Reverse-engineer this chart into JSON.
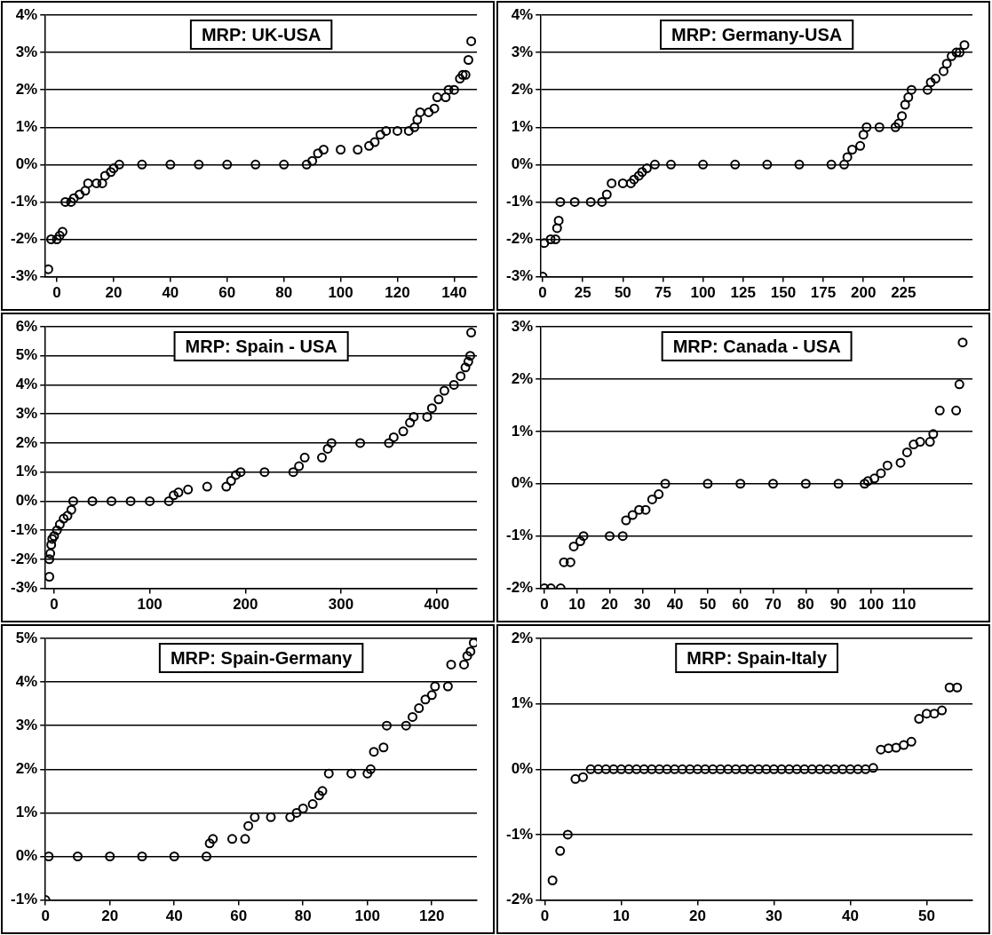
{
  "chart_data": [
    {
      "type": "scatter",
      "title": "MRP: UK-USA",
      "marker": "circle",
      "color": "#000000",
      "grid": "y",
      "x": [
        -3,
        -2,
        0,
        1,
        2,
        3,
        5,
        6,
        8,
        10,
        11,
        14,
        16,
        17,
        19,
        20,
        22,
        30,
        40,
        50,
        60,
        70,
        80,
        88,
        90,
        92,
        94,
        100,
        106,
        110,
        112,
        114,
        116,
        120,
        124,
        126,
        127,
        128,
        131,
        133,
        134,
        137,
        138,
        140,
        142,
        143,
        144,
        145,
        146
      ],
      "values": [
        -2.8,
        -2.0,
        -2.0,
        -1.9,
        -1.8,
        -1.0,
        -1.0,
        -0.9,
        -0.8,
        -0.7,
        -0.5,
        -0.5,
        -0.5,
        -0.3,
        -0.2,
        -0.1,
        0,
        0,
        0,
        0,
        0,
        0,
        0,
        0,
        0.1,
        0.3,
        0.4,
        0.4,
        0.4,
        0.5,
        0.6,
        0.8,
        0.9,
        0.9,
        0.9,
        1.0,
        1.2,
        1.4,
        1.4,
        1.5,
        1.8,
        1.8,
        2.0,
        2.0,
        2.3,
        2.4,
        2.4,
        2.8,
        3.3
      ],
      "xlim": [
        -4,
        148
      ],
      "xticks": [
        0,
        20,
        40,
        60,
        80,
        100,
        120,
        140
      ],
      "ylim": [
        -3,
        4
      ],
      "yticks": [
        {
          "value": -3,
          "label": "-3%"
        },
        {
          "value": -2,
          "label": "-2%"
        },
        {
          "value": -1,
          "label": "-1%"
        },
        {
          "value": 0,
          "label": "0%"
        },
        {
          "value": 1,
          "label": "1%"
        },
        {
          "value": 2,
          "label": "2%"
        },
        {
          "value": 3,
          "label": "3%"
        },
        {
          "value": 4,
          "label": "4%"
        }
      ]
    },
    {
      "type": "scatter",
      "title": "MRP: Germany-USA",
      "marker": "circle",
      "color": "#000000",
      "grid": "y",
      "x": [
        0,
        1,
        5,
        8,
        9,
        10,
        11,
        20,
        30,
        37,
        40,
        43,
        50,
        55,
        57,
        60,
        62,
        65,
        70,
        80,
        100,
        120,
        140,
        160,
        180,
        188,
        190,
        193,
        198,
        200,
        202,
        210,
        220,
        222,
        224,
        226,
        228,
        230,
        240,
        242,
        245,
        250,
        252,
        255,
        258,
        260,
        263
      ],
      "values": [
        -3.0,
        -2.1,
        -2.0,
        -2.0,
        -1.7,
        -1.5,
        -1.0,
        -1.0,
        -1.0,
        -1.0,
        -0.8,
        -0.5,
        -0.5,
        -0.5,
        -0.4,
        -0.3,
        -0.2,
        -0.1,
        0,
        0,
        0,
        0,
        0,
        0,
        0,
        0,
        0.2,
        0.4,
        0.5,
        0.8,
        1.0,
        1.0,
        1.0,
        1.1,
        1.3,
        1.6,
        1.8,
        2.0,
        2.0,
        2.2,
        2.3,
        2.5,
        2.7,
        2.9,
        3.0,
        3.0,
        3.2
      ],
      "xlim": [
        -1,
        268
      ],
      "xticks": [
        0,
        25,
        50,
        75,
        100,
        125,
        150,
        175,
        200,
        225
      ],
      "ylim": [
        -3,
        4
      ],
      "yticks": [
        {
          "value": -3,
          "label": "-3%"
        },
        {
          "value": -2,
          "label": "-2%"
        },
        {
          "value": -1,
          "label": "-1%"
        },
        {
          "value": 0,
          "label": "0%"
        },
        {
          "value": 1,
          "label": "1%"
        },
        {
          "value": 2,
          "label": "2%"
        },
        {
          "value": 3,
          "label": "3%"
        },
        {
          "value": 4,
          "label": "4%"
        }
      ]
    },
    {
      "type": "scatter",
      "title": "MRP: Spain - USA",
      "marker": "circle",
      "color": "#000000",
      "grid": "y",
      "x": [
        -5,
        -5,
        -4,
        -3,
        -2,
        0,
        3,
        6,
        10,
        14,
        18,
        20,
        40,
        60,
        80,
        100,
        120,
        125,
        130,
        140,
        160,
        180,
        185,
        190,
        195,
        220,
        250,
        256,
        262,
        280,
        286,
        290,
        320,
        350,
        355,
        365,
        372,
        376,
        390,
        395,
        402,
        408,
        418,
        425,
        430,
        433,
        435,
        436
      ],
      "values": [
        -2.6,
        -2.0,
        -1.8,
        -1.5,
        -1.3,
        -1.2,
        -1.0,
        -0.8,
        -0.6,
        -0.5,
        -0.3,
        0,
        0,
        0,
        0,
        0,
        0,
        0.2,
        0.3,
        0.4,
        0.5,
        0.5,
        0.7,
        0.9,
        1.0,
        1.0,
        1.0,
        1.2,
        1.5,
        1.5,
        1.8,
        2.0,
        2.0,
        2.0,
        2.2,
        2.4,
        2.7,
        2.9,
        2.9,
        3.2,
        3.5,
        3.8,
        4.0,
        4.3,
        4.6,
        4.8,
        5.0,
        5.8
      ],
      "xlim": [
        -9,
        442
      ],
      "xticks": [
        0,
        100,
        200,
        300,
        400
      ],
      "ylim": [
        -3,
        6
      ],
      "yticks": [
        {
          "value": -3,
          "label": "-3%"
        },
        {
          "value": -2,
          "label": "-2%"
        },
        {
          "value": -1,
          "label": "-1%"
        },
        {
          "value": 0,
          "label": "0%"
        },
        {
          "value": 1,
          "label": "1%"
        },
        {
          "value": 2,
          "label": "2%"
        },
        {
          "value": 3,
          "label": "3%"
        },
        {
          "value": 4,
          "label": "4%"
        },
        {
          "value": 5,
          "label": "5%"
        },
        {
          "value": 6,
          "label": "6%"
        }
      ]
    },
    {
      "type": "scatter",
      "title": "MRP: Canada - USA",
      "marker": "circle",
      "color": "#000000",
      "grid": "y",
      "x": [
        0,
        2,
        5,
        6,
        8,
        9,
        11,
        12,
        20,
        24,
        25,
        27,
        29,
        31,
        33,
        35,
        37,
        50,
        60,
        70,
        80,
        90,
        98,
        99,
        101,
        103,
        105,
        109,
        111,
        113,
        115,
        118,
        119,
        121,
        126,
        127,
        128
      ],
      "values": [
        -2,
        -2,
        -2,
        -1.5,
        -1.5,
        -1.2,
        -1.1,
        -1.0,
        -1.0,
        -1.0,
        -0.7,
        -0.6,
        -0.5,
        -0.5,
        -0.3,
        -0.2,
        0,
        0,
        0,
        0,
        0,
        0,
        0,
        0.05,
        0.1,
        0.2,
        0.35,
        0.4,
        0.6,
        0.75,
        0.8,
        0.8,
        0.95,
        1.4,
        1.4,
        1.9,
        2.7
      ],
      "xlim": [
        -1,
        131
      ],
      "xticks": [
        0,
        10,
        20,
        30,
        40,
        50,
        60,
        70,
        80,
        90,
        100,
        110
      ],
      "ylim": [
        -2,
        3
      ],
      "yticks": [
        {
          "value": -2,
          "label": "-2%"
        },
        {
          "value": -1,
          "label": "-1%"
        },
        {
          "value": 0,
          "label": "0%"
        },
        {
          "value": 1,
          "label": "1%"
        },
        {
          "value": 2,
          "label": "2%"
        },
        {
          "value": 3,
          "label": "3%"
        }
      ]
    },
    {
      "type": "scatter",
      "title": "MRP: Spain-Germany",
      "marker": "circle",
      "color": "#000000",
      "grid": "y",
      "x": [
        0,
        1,
        10,
        20,
        30,
        40,
        50,
        51,
        52,
        58,
        62,
        63,
        65,
        70,
        76,
        78,
        80,
        83,
        85,
        86,
        88,
        95,
        100,
        101,
        102,
        105,
        106,
        112,
        114,
        116,
        118,
        120,
        121,
        125,
        126,
        130,
        131,
        132,
        133
      ],
      "values": [
        -1.0,
        0,
        0,
        0,
        0,
        0,
        0,
        0.3,
        0.4,
        0.4,
        0.4,
        0.7,
        0.9,
        0.9,
        0.9,
        1.0,
        1.1,
        1.2,
        1.4,
        1.5,
        1.9,
        1.9,
        1.9,
        2.0,
        2.4,
        2.5,
        3.0,
        3.0,
        3.2,
        3.4,
        3.6,
        3.7,
        3.9,
        3.9,
        4.4,
        4.4,
        4.6,
        4.7,
        4.9
      ],
      "xlim": [
        0,
        134
      ],
      "xticks": [
        0,
        20,
        40,
        60,
        80,
        100,
        120
      ],
      "ylim": [
        -1,
        5
      ],
      "yticks": [
        {
          "value": -1,
          "label": "-1%"
        },
        {
          "value": 0,
          "label": "0%"
        },
        {
          "value": 1,
          "label": "1%"
        },
        {
          "value": 2,
          "label": "2%"
        },
        {
          "value": 3,
          "label": "3%"
        },
        {
          "value": 4,
          "label": "4%"
        },
        {
          "value": 5,
          "label": "5%"
        }
      ]
    },
    {
      "type": "scatter",
      "title": "MRP: Spain-Italy",
      "marker": "circle",
      "color": "#000000",
      "grid": "y",
      "x": [
        1,
        2,
        3,
        4,
        5,
        6,
        7,
        8,
        9,
        10,
        11,
        12,
        13,
        14,
        15,
        16,
        17,
        18,
        19,
        20,
        21,
        22,
        23,
        24,
        25,
        26,
        27,
        28,
        29,
        30,
        31,
        32,
        33,
        34,
        35,
        36,
        37,
        38,
        39,
        40,
        41,
        42,
        43,
        44,
        45,
        46,
        47,
        48,
        49,
        50,
        51,
        52,
        53,
        54
      ],
      "values": [
        -1.7,
        -1.25,
        -1.0,
        -0.15,
        -0.12,
        0,
        0,
        0,
        0,
        0,
        0,
        0,
        0,
        0,
        0,
        0,
        0,
        0,
        0,
        0,
        0,
        0,
        0,
        0,
        0,
        0,
        0,
        0,
        0,
        0,
        0,
        0,
        0,
        0,
        0,
        0,
        0,
        0,
        0,
        0,
        0,
        0,
        0.02,
        0.3,
        0.32,
        0.33,
        0.37,
        0.42,
        0.77,
        0.85,
        0.85,
        0.9,
        1.25,
        1.25
      ],
      "xlim": [
        -0.5,
        56
      ],
      "xticks": [
        0,
        10,
        20,
        30,
        40,
        50
      ],
      "ylim": [
        -2,
        2
      ],
      "yticks": [
        {
          "value": -2,
          "label": "-2%"
        },
        {
          "value": -1,
          "label": "-1%"
        },
        {
          "value": 0,
          "label": "0%"
        },
        {
          "value": 1,
          "label": "1%"
        },
        {
          "value": 2,
          "label": "2%"
        }
      ]
    }
  ]
}
